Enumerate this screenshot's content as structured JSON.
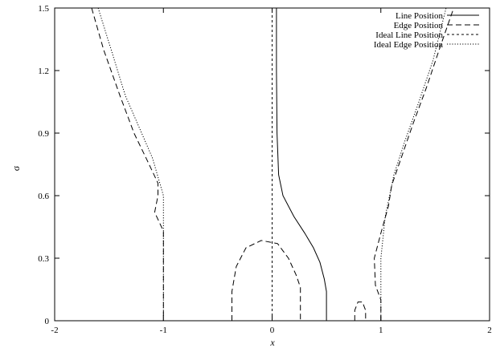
{
  "chart_data": {
    "type": "line",
    "xlabel": "x",
    "ylabel": "σ",
    "xlim": [
      -2,
      2
    ],
    "ylim": [
      0,
      1.5
    ],
    "x_ticks": [
      -2,
      -1,
      0,
      1,
      2
    ],
    "x_tick_labels": [
      "-2",
      "-1",
      "0",
      "1",
      "2"
    ],
    "y_ticks": [
      0,
      0.3,
      0.6,
      0.9,
      1.2,
      1.5
    ],
    "y_tick_labels": [
      "0",
      "0.3",
      "0.6",
      "0.9",
      "1.2",
      "1.5"
    ],
    "grid": false,
    "legend_position": "top-right",
    "series": [
      {
        "name": "Line Position",
        "style": "solid",
        "segments": [
          [
            [
              0.04,
              1.5
            ],
            [
              0.04,
              1.2
            ],
            [
              0.045,
              0.9
            ],
            [
              0.06,
              0.7
            ],
            [
              0.1,
              0.6
            ],
            [
              0.2,
              0.5
            ],
            [
              0.3,
              0.42
            ],
            [
              0.38,
              0.35
            ],
            [
              0.44,
              0.28
            ],
            [
              0.48,
              0.2
            ],
            [
              0.5,
              0.14
            ],
            [
              0.5,
              0.0
            ]
          ]
        ]
      },
      {
        "name": "Edge Position",
        "style": "dashed",
        "segments": [
          [
            [
              -1.66,
              1.5
            ],
            [
              -1.55,
              1.3
            ],
            [
              -1.4,
              1.08
            ],
            [
              -1.27,
              0.9
            ],
            [
              -1.15,
              0.77
            ],
            [
              -1.05,
              0.66
            ],
            [
              -1.05,
              0.6
            ],
            [
              -1.08,
              0.52
            ],
            [
              -1.0,
              0.43
            ],
            [
              -1.0,
              0.0
            ]
          ],
          [
            [
              -0.37,
              0.0
            ],
            [
              -0.37,
              0.14
            ],
            [
              -0.33,
              0.26
            ],
            [
              -0.24,
              0.35
            ],
            [
              -0.1,
              0.385
            ],
            [
              0.05,
              0.37
            ],
            [
              0.15,
              0.3
            ],
            [
              0.22,
              0.22
            ],
            [
              0.26,
              0.16
            ],
            [
              0.26,
              0.0
            ]
          ],
          [
            [
              0.76,
              0.0
            ],
            [
              0.76,
              0.05
            ],
            [
              0.79,
              0.09
            ],
            [
              0.83,
              0.09
            ],
            [
              0.86,
              0.05
            ],
            [
              0.86,
              0.0
            ]
          ],
          [
            [
              1.0,
              0.0
            ],
            [
              1.0,
              0.1
            ],
            [
              0.95,
              0.17
            ],
            [
              0.94,
              0.3
            ],
            [
              1.0,
              0.42
            ],
            [
              1.07,
              0.55
            ],
            [
              1.1,
              0.65
            ],
            [
              1.2,
              0.8
            ],
            [
              1.3,
              0.95
            ],
            [
              1.42,
              1.12
            ],
            [
              1.55,
              1.32
            ],
            [
              1.67,
              1.5
            ]
          ]
        ]
      },
      {
        "name": "Ideal Line Position",
        "style": "short-dashed",
        "segments": [
          [
            [
              0.0,
              0.0
            ],
            [
              0.0,
              1.5
            ]
          ]
        ]
      },
      {
        "name": "Ideal Edge Position",
        "style": "dotted",
        "segments": [
          [
            [
              -1.6,
              1.5
            ],
            [
              -1.48,
              1.3
            ],
            [
              -1.35,
              1.08
            ],
            [
              -1.2,
              0.9
            ],
            [
              -1.1,
              0.78
            ],
            [
              -1.0,
              0.6
            ],
            [
              -1.0,
              0.0
            ]
          ],
          [
            [
              1.0,
              0.0
            ],
            [
              1.0,
              0.3
            ],
            [
              1.04,
              0.5
            ],
            [
              1.12,
              0.7
            ],
            [
              1.22,
              0.86
            ],
            [
              1.35,
              1.05
            ],
            [
              1.48,
              1.25
            ],
            [
              1.6,
              1.5
            ]
          ]
        ]
      }
    ]
  }
}
